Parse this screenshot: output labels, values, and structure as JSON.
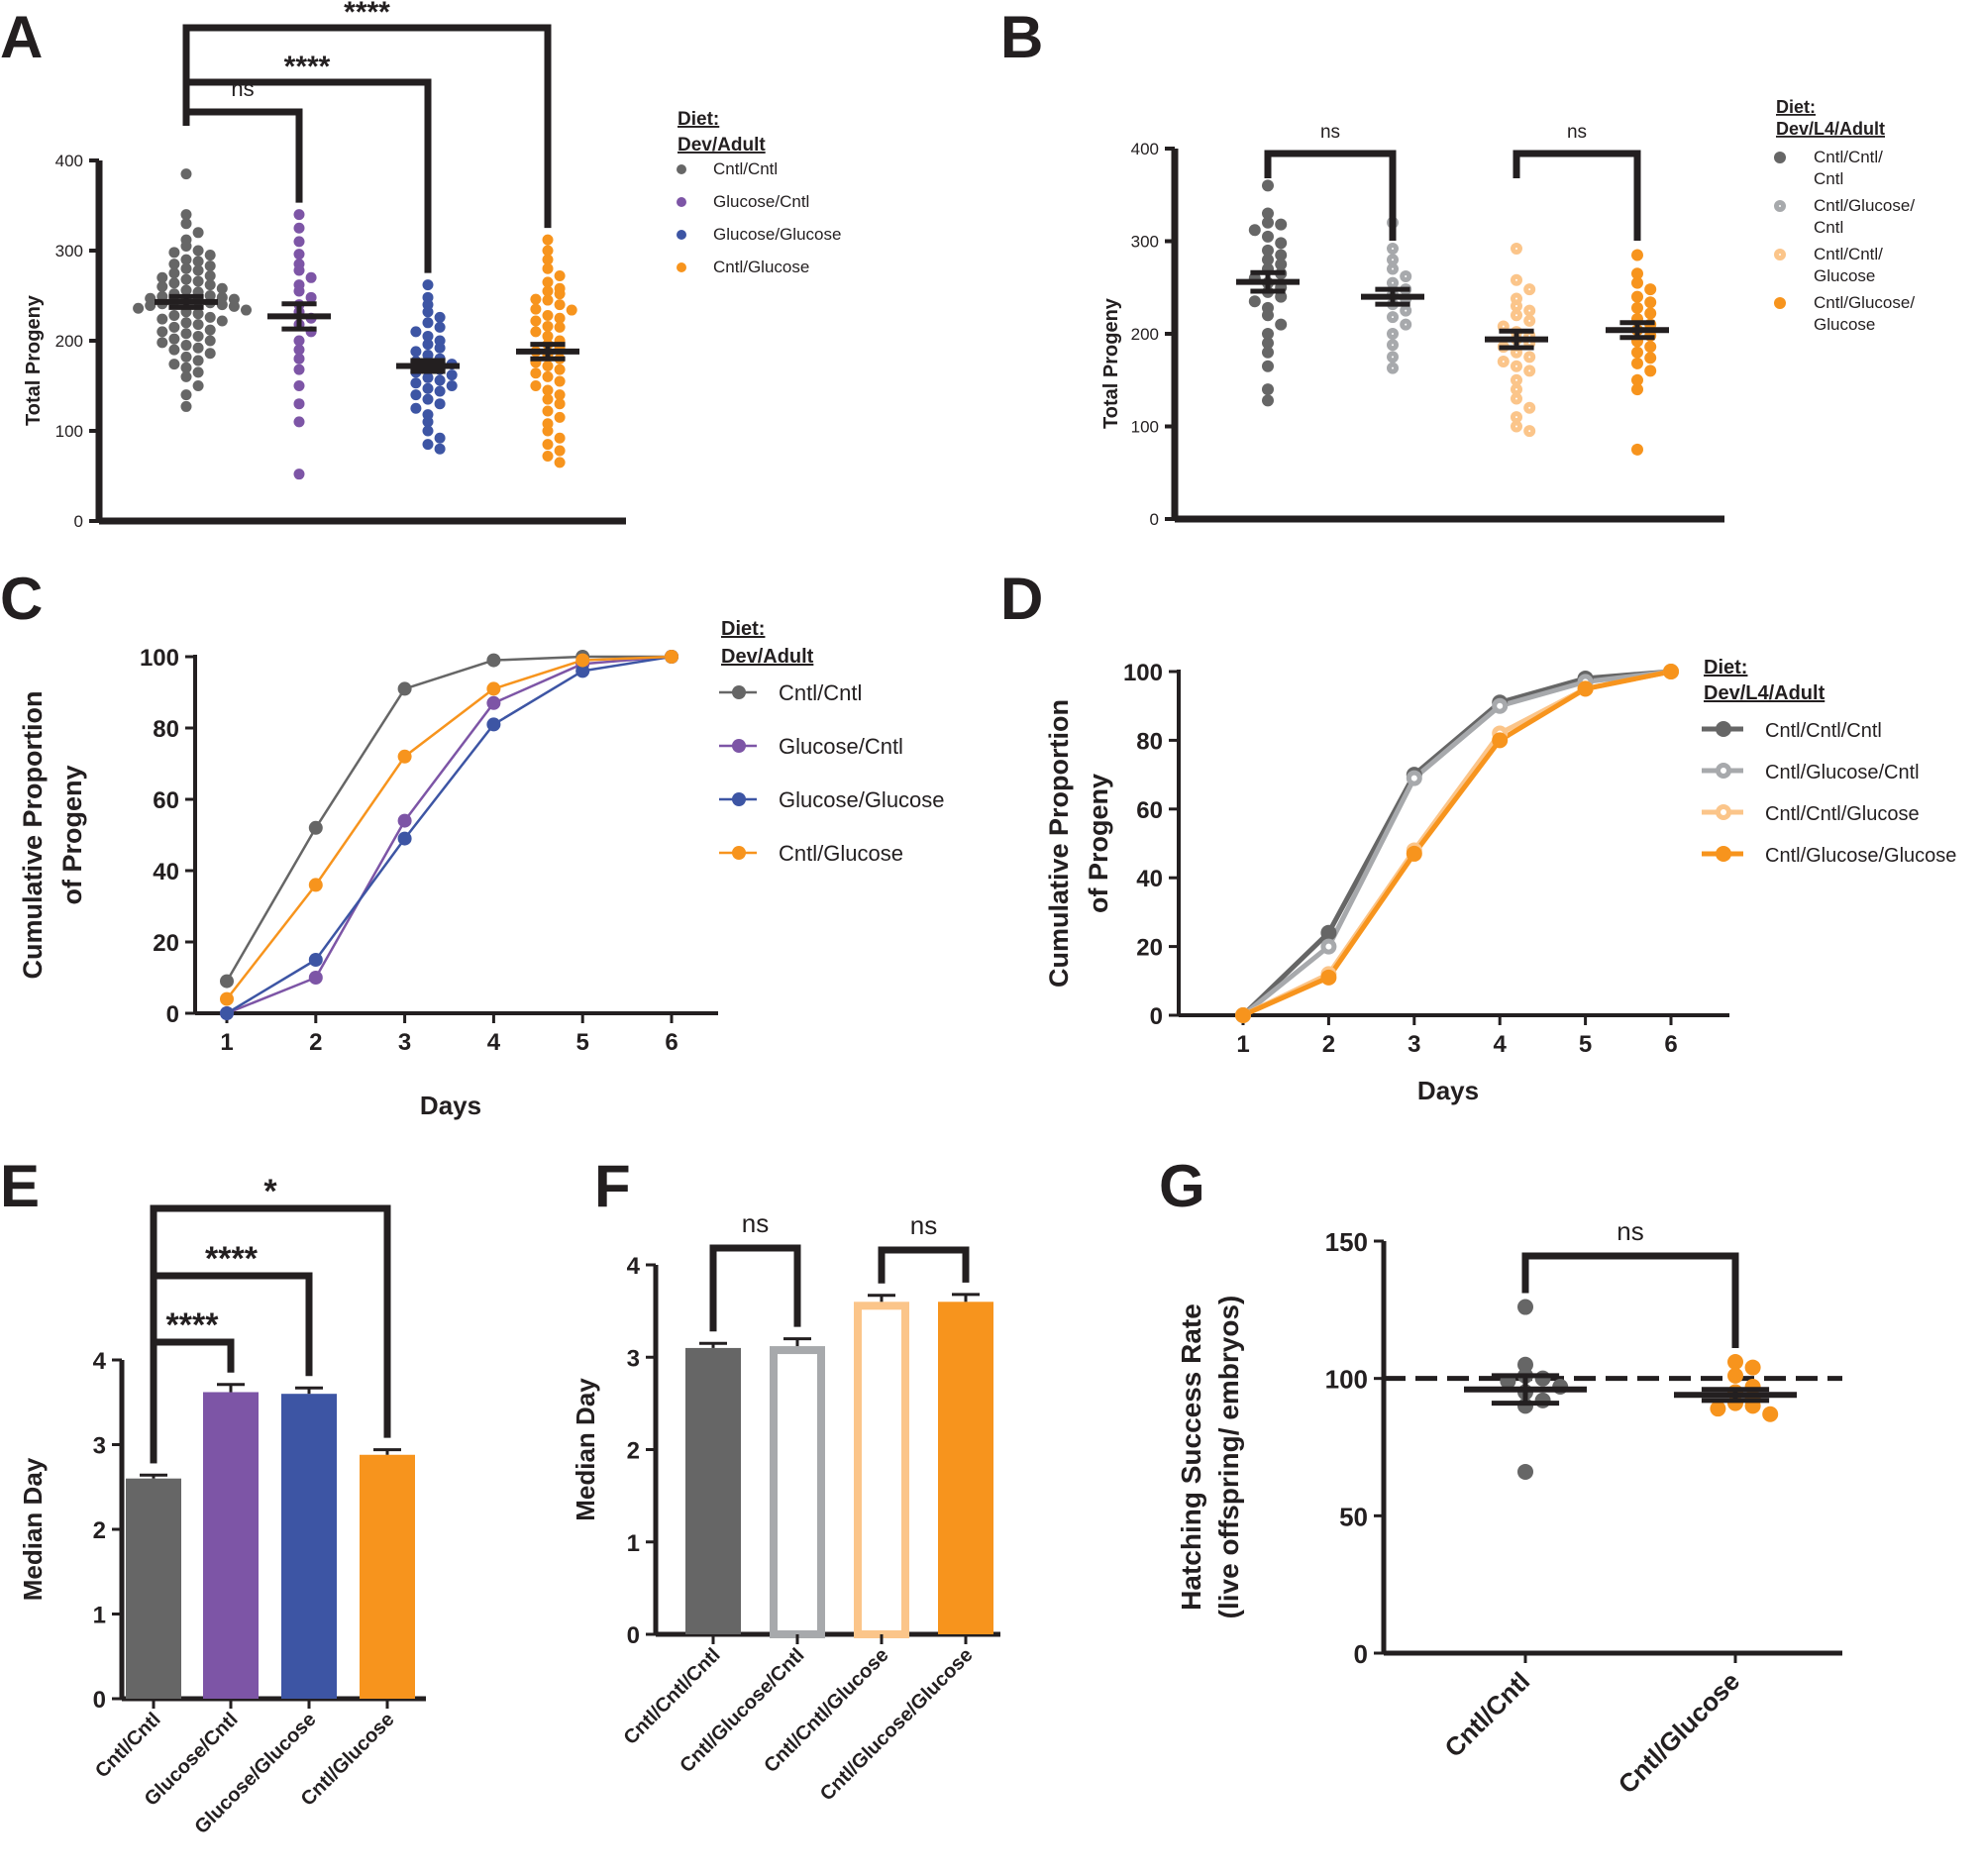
{
  "colors": {
    "black": "#231f20",
    "cntl_cntl": "#666666",
    "glucose_cntl": "#7d55a6",
    "glucose_glucose": "#3d55a4",
    "cntl_glucose": "#f7941d",
    "cntl_glucose_cntl": "#a7a9ac",
    "cntl_cntl_glucose": "#fbc58a",
    "cntl_glucose_glucose": "#f7941d"
  },
  "chart_data": [
    {
      "panel": "A",
      "type": "scatter",
      "ylabel": "Total Progeny",
      "ylim": [
        0,
        400
      ],
      "yticks": [
        0,
        100,
        200,
        300,
        400
      ],
      "legend_title": [
        "Diet:",
        "Dev/Adult"
      ],
      "legend_marker": "filled",
      "legend_labels": [
        [
          "Cntl/Cntl"
        ],
        [
          "Glucose/Cntl"
        ],
        [
          "Glucose/Glucose"
        ],
        [
          "Cntl/Glucose"
        ]
      ],
      "series": [
        {
          "color": "cntl_cntl",
          "hollow": false,
          "mean": 243,
          "sem": 6,
          "values": [
            385,
            340,
            330,
            320,
            312,
            305,
            300,
            298,
            295,
            290,
            288,
            285,
            283,
            280,
            278,
            275,
            272,
            270,
            268,
            266,
            264,
            262,
            260,
            258,
            256,
            254,
            252,
            250,
            249,
            248,
            247,
            246,
            245,
            244,
            243,
            242,
            241,
            240,
            239,
            238,
            236,
            234,
            232,
            230,
            228,
            226,
            224,
            222,
            220,
            218,
            215,
            212,
            210,
            208,
            205,
            202,
            200,
            198,
            195,
            192,
            190,
            186,
            182,
            178,
            174,
            170,
            165,
            160,
            150,
            140,
            127
          ]
        },
        {
          "color": "glucose_cntl",
          "hollow": false,
          "mean": 227,
          "sem": 14,
          "values": [
            340,
            325,
            310,
            296,
            285,
            278,
            270,
            262,
            255,
            248,
            240,
            232,
            225,
            218,
            210,
            200,
            190,
            180,
            168,
            150,
            130,
            110,
            52
          ]
        },
        {
          "color": "glucose_glucose",
          "hollow": false,
          "mean": 172,
          "sem": 6,
          "values": [
            262,
            248,
            240,
            232,
            226,
            220,
            215,
            210,
            205,
            200,
            196,
            192,
            188,
            184,
            180,
            177,
            174,
            171,
            168,
            165,
            162,
            159,
            156,
            153,
            150,
            147,
            144,
            140,
            135,
            130,
            125,
            118,
            110,
            100,
            92,
            85,
            80
          ]
        },
        {
          "color": "cntl_glucose",
          "hollow": false,
          "mean": 188,
          "sem": 8,
          "values": [
            312,
            300,
            290,
            280,
            272,
            265,
            258,
            252,
            246,
            240,
            234,
            228,
            222,
            216,
            210,
            205,
            200,
            196,
            192,
            188,
            184,
            180,
            176,
            172,
            168,
            164,
            160,
            155,
            150,
            145,
            140,
            135,
            130,
            122,
            115,
            108,
            100,
            92,
            85,
            78,
            72,
            65,
            255,
            245,
            235,
            225,
            215
          ]
        }
      ],
      "comparisons": [
        {
          "from": 0,
          "to": 1,
          "label": "ns"
        },
        {
          "from": 0,
          "to": 2,
          "label": "****"
        },
        {
          "from": 0,
          "to": 3,
          "label": "****"
        }
      ]
    },
    {
      "panel": "B",
      "type": "scatter",
      "ylabel": "Total Progeny",
      "ylim": [
        0,
        400
      ],
      "yticks": [
        0,
        100,
        200,
        300,
        400
      ],
      "legend_title": [
        "Diet:",
        "Dev/L4/Adult"
      ],
      "legend_labels": [
        [
          "Cntl/Cntl/",
          "Cntl"
        ],
        [
          "Cntl/Glucose/",
          "Cntl"
        ],
        [
          "Cntl/Cntl/",
          "Glucose"
        ],
        [
          "Cntl/Glucose/",
          "Glucose"
        ]
      ],
      "series": [
        {
          "color": "cntl_cntl",
          "hollow": false,
          "mean": 256,
          "sem": 10,
          "values": [
            360,
            330,
            320,
            318,
            312,
            305,
            298,
            290,
            285,
            280,
            275,
            270,
            265,
            260,
            255,
            250,
            245,
            240,
            235,
            228,
            220,
            210,
            200,
            190,
            180,
            165,
            140,
            128
          ]
        },
        {
          "color": "cntl_glucose_cntl",
          "hollow": true,
          "mean": 240,
          "sem": 8,
          "values": [
            320,
            292,
            280,
            270,
            262,
            255,
            248,
            242,
            238,
            232,
            225,
            218,
            210,
            200,
            188,
            175,
            163
          ]
        },
        {
          "color": "cntl_cntl_glucose",
          "hollow": true,
          "mean": 194,
          "sem": 9,
          "values": [
            292,
            258,
            248,
            238,
            230,
            225,
            220,
            214,
            208,
            202,
            198,
            194,
            190,
            186,
            180,
            175,
            170,
            165,
            160,
            150,
            140,
            130,
            120,
            110,
            100,
            95
          ]
        },
        {
          "color": "cntl_glucose_glucose",
          "hollow": false,
          "mean": 204,
          "sem": 8,
          "values": [
            285,
            265,
            255,
            248,
            240,
            234,
            228,
            222,
            216,
            210,
            204,
            198,
            192,
            186,
            180,
            174,
            168,
            160,
            150,
            140,
            75
          ]
        }
      ],
      "comparisons": [
        {
          "from": 0,
          "to": 1,
          "label": "ns"
        },
        {
          "from": 2,
          "to": 3,
          "label": "ns"
        }
      ]
    },
    {
      "panel": "C",
      "type": "line",
      "xlabel": "Days",
      "ylabel": [
        "Cumulative Proportion",
        "of Progeny"
      ],
      "x": [
        1,
        2,
        3,
        4,
        5,
        6
      ],
      "ylim": [
        0,
        100
      ],
      "yticks": [
        0,
        20,
        40,
        60,
        80,
        100
      ],
      "legend_title": [
        "Diet:",
        "Dev/Adult"
      ],
      "series": [
        {
          "name": "Cntl/Cntl",
          "color": "cntl_cntl",
          "hollow": false,
          "values": [
            9,
            52,
            91,
            99,
            100,
            100
          ]
        },
        {
          "name": "Glucose/Cntl",
          "color": "glucose_cntl",
          "hollow": false,
          "values": [
            0,
            10,
            54,
            87,
            98,
            100
          ]
        },
        {
          "name": "Glucose/Glucose",
          "color": "glucose_glucose",
          "hollow": false,
          "values": [
            0,
            15,
            49,
            81,
            96,
            100
          ]
        },
        {
          "name": "Cntl/Glucose",
          "color": "cntl_glucose",
          "hollow": false,
          "values": [
            4,
            36,
            72,
            91,
            99,
            100
          ]
        }
      ]
    },
    {
      "panel": "D",
      "type": "line",
      "xlabel": "Days",
      "ylabel": [
        "Cumulative Proportion",
        "of Progeny"
      ],
      "x": [
        1,
        2,
        3,
        4,
        5,
        6
      ],
      "ylim": [
        0,
        100
      ],
      "yticks": [
        0,
        20,
        40,
        60,
        80,
        100
      ],
      "legend_title": [
        "Diet:",
        "Dev/L4/Adult"
      ],
      "series": [
        {
          "name": "Cntl/Cntl/Cntl",
          "color": "cntl_cntl",
          "hollow": false,
          "values": [
            0,
            24,
            70,
            91,
            98,
            100
          ]
        },
        {
          "name": "Cntl/Glucose/Cntl",
          "color": "cntl_glucose_cntl",
          "hollow": true,
          "values": [
            0,
            20,
            69,
            90,
            97,
            100
          ]
        },
        {
          "name": "Cntl/Cntl/Glucose",
          "color": "cntl_cntl_glucose",
          "hollow": true,
          "values": [
            0,
            12,
            48,
            82,
            95,
            100
          ]
        },
        {
          "name": "Cntl/Glucose/Glucose",
          "color": "cntl_glucose_glucose",
          "hollow": false,
          "values": [
            0,
            11,
            47,
            80,
            95,
            100
          ]
        }
      ]
    },
    {
      "panel": "E",
      "type": "bar",
      "ylabel": "Median Day",
      "ylim": [
        0,
        4
      ],
      "yticks": [
        0,
        1,
        2,
        3,
        4
      ],
      "categories": [
        "Cntl/Cntl",
        "Glucose/Cntl",
        "Glucose/Glucose",
        "Cntl/Glucose"
      ],
      "values": [
        2.6,
        3.62,
        3.6,
        2.88
      ],
      "errors": [
        0.04,
        0.09,
        0.07,
        0.06
      ],
      "bar_colors": [
        "cntl_cntl",
        "glucose_cntl",
        "glucose_glucose",
        "cntl_glucose"
      ],
      "hollow": [
        false,
        false,
        false,
        false
      ],
      "comparisons": [
        {
          "from": 0,
          "to": 1,
          "label": "****"
        },
        {
          "from": 0,
          "to": 2,
          "label": "****"
        },
        {
          "from": 0,
          "to": 3,
          "label": "*"
        }
      ]
    },
    {
      "panel": "F",
      "type": "bar",
      "ylabel": "Median Day",
      "ylim": [
        0,
        4
      ],
      "yticks": [
        0,
        1,
        2,
        3,
        4
      ],
      "categories": [
        "Cntl/Cntl/Cntl",
        "Cntl/Glucose/Cntl",
        "Cntl/Cntl/Glucose",
        "Cntl/Glucose/Glucose"
      ],
      "values": [
        3.1,
        3.12,
        3.6,
        3.6
      ],
      "errors": [
        0.05,
        0.08,
        0.07,
        0.08
      ],
      "bar_colors": [
        "cntl_cntl",
        "cntl_glucose_cntl",
        "cntl_cntl_glucose",
        "cntl_glucose_glucose"
      ],
      "hollow": [
        false,
        true,
        true,
        false
      ],
      "comparisons": [
        {
          "from": 0,
          "to": 1,
          "label": "ns"
        },
        {
          "from": 2,
          "to": 3,
          "label": "ns"
        }
      ]
    },
    {
      "panel": "G",
      "type": "scatter",
      "ylabel": [
        "Hatching Success Rate",
        "(live offspring/ embryos)"
      ],
      "ylim": [
        0,
        150
      ],
      "yticks": [
        0,
        50,
        100,
        150
      ],
      "categories": [
        "Cntl/Cntl",
        "Cntl/Glucose"
      ],
      "reference_line": 100,
      "series": [
        {
          "color": "cntl_cntl",
          "hollow": false,
          "mean": 96,
          "sem": 5,
          "values": [
            126,
            105,
            101,
            100,
            99,
            97,
            95,
            92,
            90,
            66
          ]
        },
        {
          "color": "cntl_glucose",
          "hollow": false,
          "mean": 94,
          "sem": 2,
          "values": [
            106,
            104,
            101,
            97,
            95,
            93,
            91,
            90,
            89,
            87
          ]
        }
      ],
      "comparisons": [
        {
          "from": 0,
          "to": 1,
          "label": "ns"
        }
      ]
    }
  ],
  "panels": {
    "a": {
      "letter": "A"
    },
    "b": {
      "letter": "B"
    },
    "c": {
      "letter": "C"
    },
    "d": {
      "letter": "D"
    },
    "e": {
      "letter": "E"
    },
    "f": {
      "letter": "F"
    },
    "g": {
      "letter": "G"
    }
  }
}
